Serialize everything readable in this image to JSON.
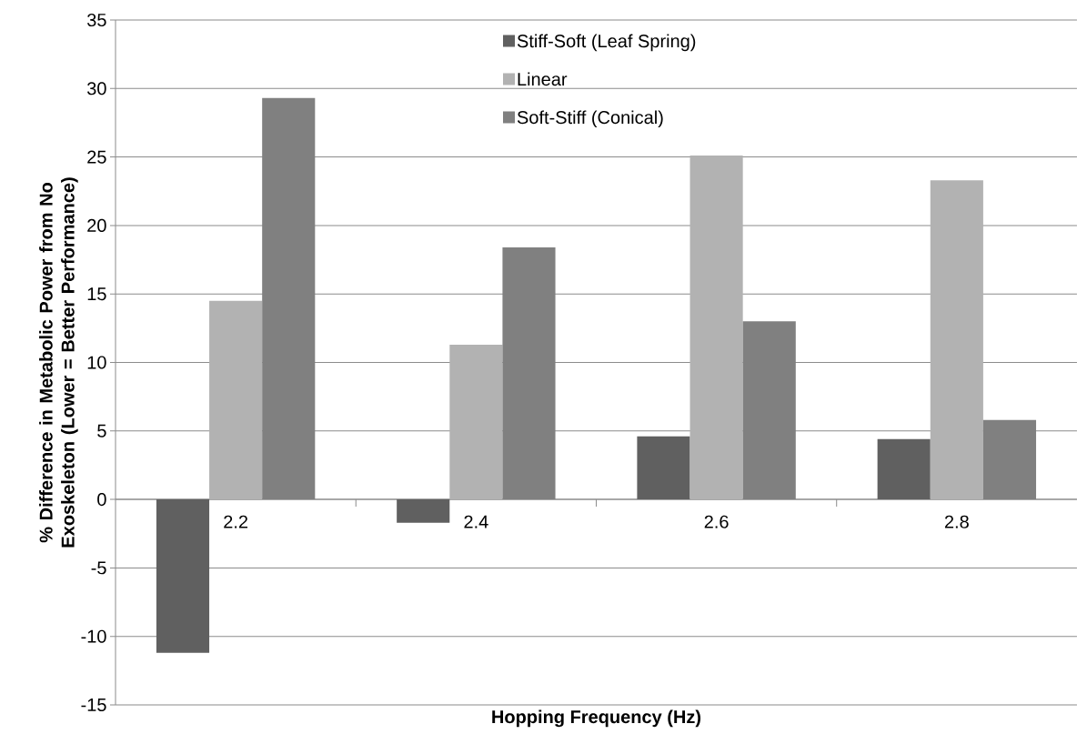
{
  "chart_data": {
    "type": "bar",
    "xlabel": "Hopping Frequency (Hz)",
    "ylabel": "% Difference in Metabolic Power from No Exoskeleton (Lower = Better Performance)",
    "categories": [
      "2.2",
      "2.4",
      "2.6",
      "2.8"
    ],
    "series": [
      {
        "name": "Stiff-Soft (Leaf Spring)",
        "color": "#606060",
        "values": [
          -11.2,
          -1.7,
          4.6,
          4.4
        ]
      },
      {
        "name": "Linear",
        "color": "#b2b2b2",
        "values": [
          14.5,
          11.3,
          25.1,
          23.3
        ]
      },
      {
        "name": "Soft-Stiff (Conical)",
        "color": "#808080",
        "values": [
          29.3,
          18.4,
          13.0,
          5.8
        ]
      }
    ],
    "ylim": [
      -15,
      35
    ],
    "yticks": [
      -15,
      -10,
      -5,
      0,
      5,
      10,
      15,
      20,
      25,
      30,
      35
    ],
    "grid": "y",
    "legend": "top"
  }
}
